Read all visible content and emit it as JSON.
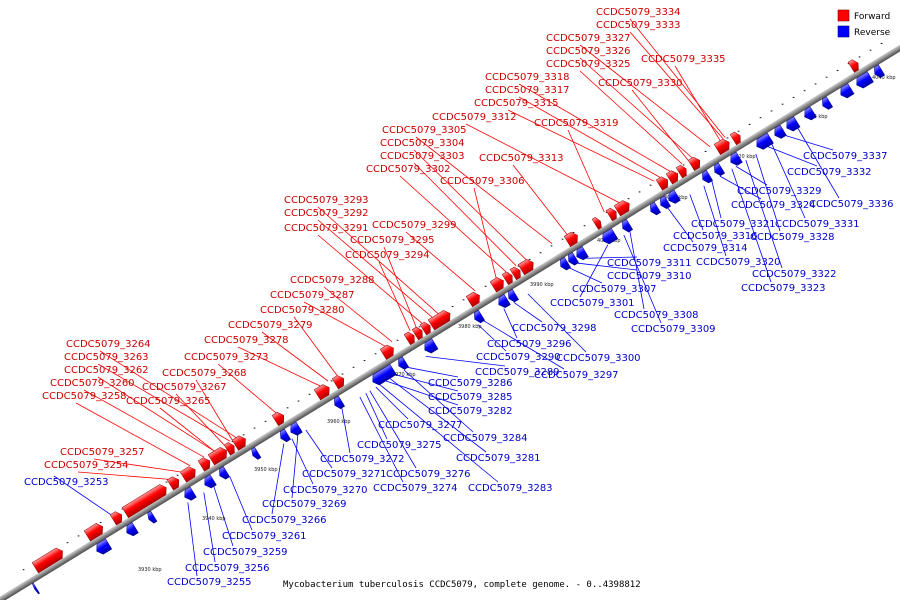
{
  "caption": "Mycobacterium tuberculosis CCDC5079, complete genome. - 0..4398812",
  "legend": [
    {
      "label": "Forward",
      "color": "#ff0000"
    },
    {
      "label": "Reverse",
      "color": "#0000ff"
    }
  ],
  "colors": {
    "forward": "#ff0000",
    "reverse": "#0000ff",
    "backbone": "#777777"
  },
  "ticks": [
    "3930 kbp",
    "3940 kbp",
    "3950 kbp",
    "3960 kbp",
    "3970 kbp",
    "3980 kbp",
    "3990 kbp",
    "4000 kbp",
    "4010 kbp",
    "4020 kbp",
    "4030 kbp",
    "4040 kbp"
  ],
  "forward_labels": [
    "CCDC5079_3334",
    "CCDC5079_3333",
    "CCDC5079_3327",
    "CCDC5079_3326",
    "CCDC5079_3325",
    "CCDC5079_3335",
    "CCDC5079_3318",
    "CCDC5079_3330",
    "CCDC5079_3317",
    "CCDC5079_3315",
    "CCDC5079_3312",
    "CCDC5079_3319",
    "CCDC5079_3305",
    "CCDC5079_3304",
    "CCDC5079_3303",
    "CCDC5079_3313",
    "CCDC5079_3302",
    "CCDC5079_3306",
    "CCDC5079_3293",
    "CCDC5079_3292",
    "CCDC5079_3299",
    "CCDC5079_3291",
    "CCDC5079_3295",
    "CCDC5079_3294",
    "CCDC5079_3288",
    "CCDC5079_3287",
    "CCDC5079_3280",
    "CCDC5079_3279",
    "CCDC5079_3278",
    "CCDC5079_3264",
    "CCDC5079_3263",
    "CCDC5079_3273",
    "CCDC5079_3262",
    "CCDC5079_3268",
    "CCDC5079_3260",
    "CCDC5079_3267",
    "CCDC5079_3258",
    "CCDC5079_3265",
    "CCDC5079_3257",
    "CCDC5079_3254"
  ],
  "reverse_labels": [
    "CCDC5079_3253",
    "CCDC5079_3337",
    "CCDC5079_3332",
    "CCDC5079_3329",
    "CCDC5079_3324",
    "CCDC5079_3336",
    "CCDC5079_3321",
    "CCDC5079_3331",
    "CCDC5079_3314",
    "CCDC5079_3328",
    "CCDC5079_3316",
    "CCDC5079_3320",
    "CCDC5079_3311",
    "CCDC5079_3322",
    "CCDC5079_3310",
    "CCDC5079_3323",
    "CCDC5079_3307",
    "CCDC5079_3301",
    "CCDC5079_3308",
    "CCDC5079_3298",
    "CCDC5079_3309",
    "CCDC5079_3296",
    "CCDC5079_3290",
    "CCDC5079_3300",
    "CCDC5079_3289",
    "CCDC5079_3297",
    "CCDC5079_3286",
    "CCDC5079_3285",
    "CCDC5079_3282",
    "CCDC5079_3277",
    "CCDC5079_3284",
    "CCDC5079_3275",
    "CCDC5079_3272",
    "CCDC5079_3281",
    "CCDC5079_3271",
    "CCDC5079_3276",
    "CCDC5079_3270",
    "CCDC5079_3274",
    "CCDC5079_3283",
    "CCDC5079_3269",
    "CCDC5079_3266",
    "CCDC5079_3261",
    "CCDC5079_3259",
    "CCDC5079_3256",
    "CCDC5079_3255"
  ]
}
